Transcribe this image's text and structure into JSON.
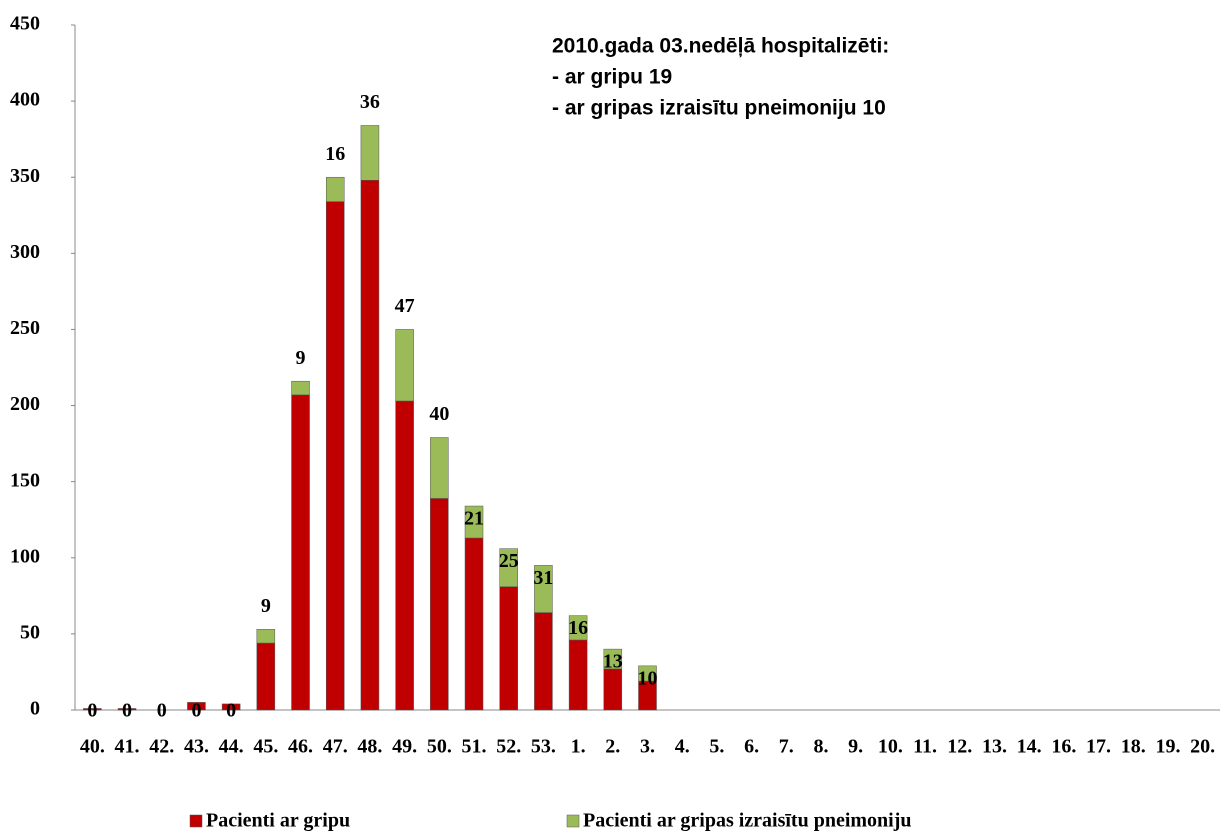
{
  "chart_data": {
    "type": "stacked_bar",
    "annotation": [
      "2010.gada 03.nedēļā hospitalizēti:",
      "- ar gripu 19",
      "- ar gripas izraisītu pneimoniju 10"
    ],
    "categories": [
      "40.",
      "41.",
      "42.",
      "43.",
      "44.",
      "45.",
      "46.",
      "47.",
      "48.",
      "49.",
      "50.",
      "51.",
      "52.",
      "53.",
      "1.",
      "2.",
      "3.",
      "4.",
      "5.",
      "6.",
      "7.",
      "8.",
      "9.",
      "10.",
      "11.",
      "12.",
      "13.",
      "14.",
      "16.",
      "17.",
      "18.",
      "19.",
      "20."
    ],
    "series": [
      {
        "name": "Pacienti ar gripu",
        "color": "#c00000",
        "values": [
          1,
          1,
          0,
          5,
          4,
          44,
          207,
          334,
          348,
          203,
          139,
          113,
          81,
          64,
          46,
          27,
          19,
          null,
          null,
          null,
          null,
          null,
          null,
          null,
          null,
          null,
          null,
          null,
          null,
          null,
          null,
          null,
          null
        ]
      },
      {
        "name": "Pacienti ar gripas izraisītu pneimoniju",
        "color": "#9bbb59",
        "values": [
          0,
          0,
          0,
          0,
          0,
          9,
          9,
          16,
          36,
          47,
          40,
          21,
          25,
          31,
          16,
          13,
          10,
          null,
          null,
          null,
          null,
          null,
          null,
          null,
          null,
          null,
          null,
          null,
          null,
          null,
          null,
          null,
          null
        ]
      }
    ],
    "ylim": [
      0,
      450
    ],
    "yticks": [
      0,
      50,
      100,
      150,
      200,
      250,
      300,
      350,
      400,
      450
    ]
  }
}
